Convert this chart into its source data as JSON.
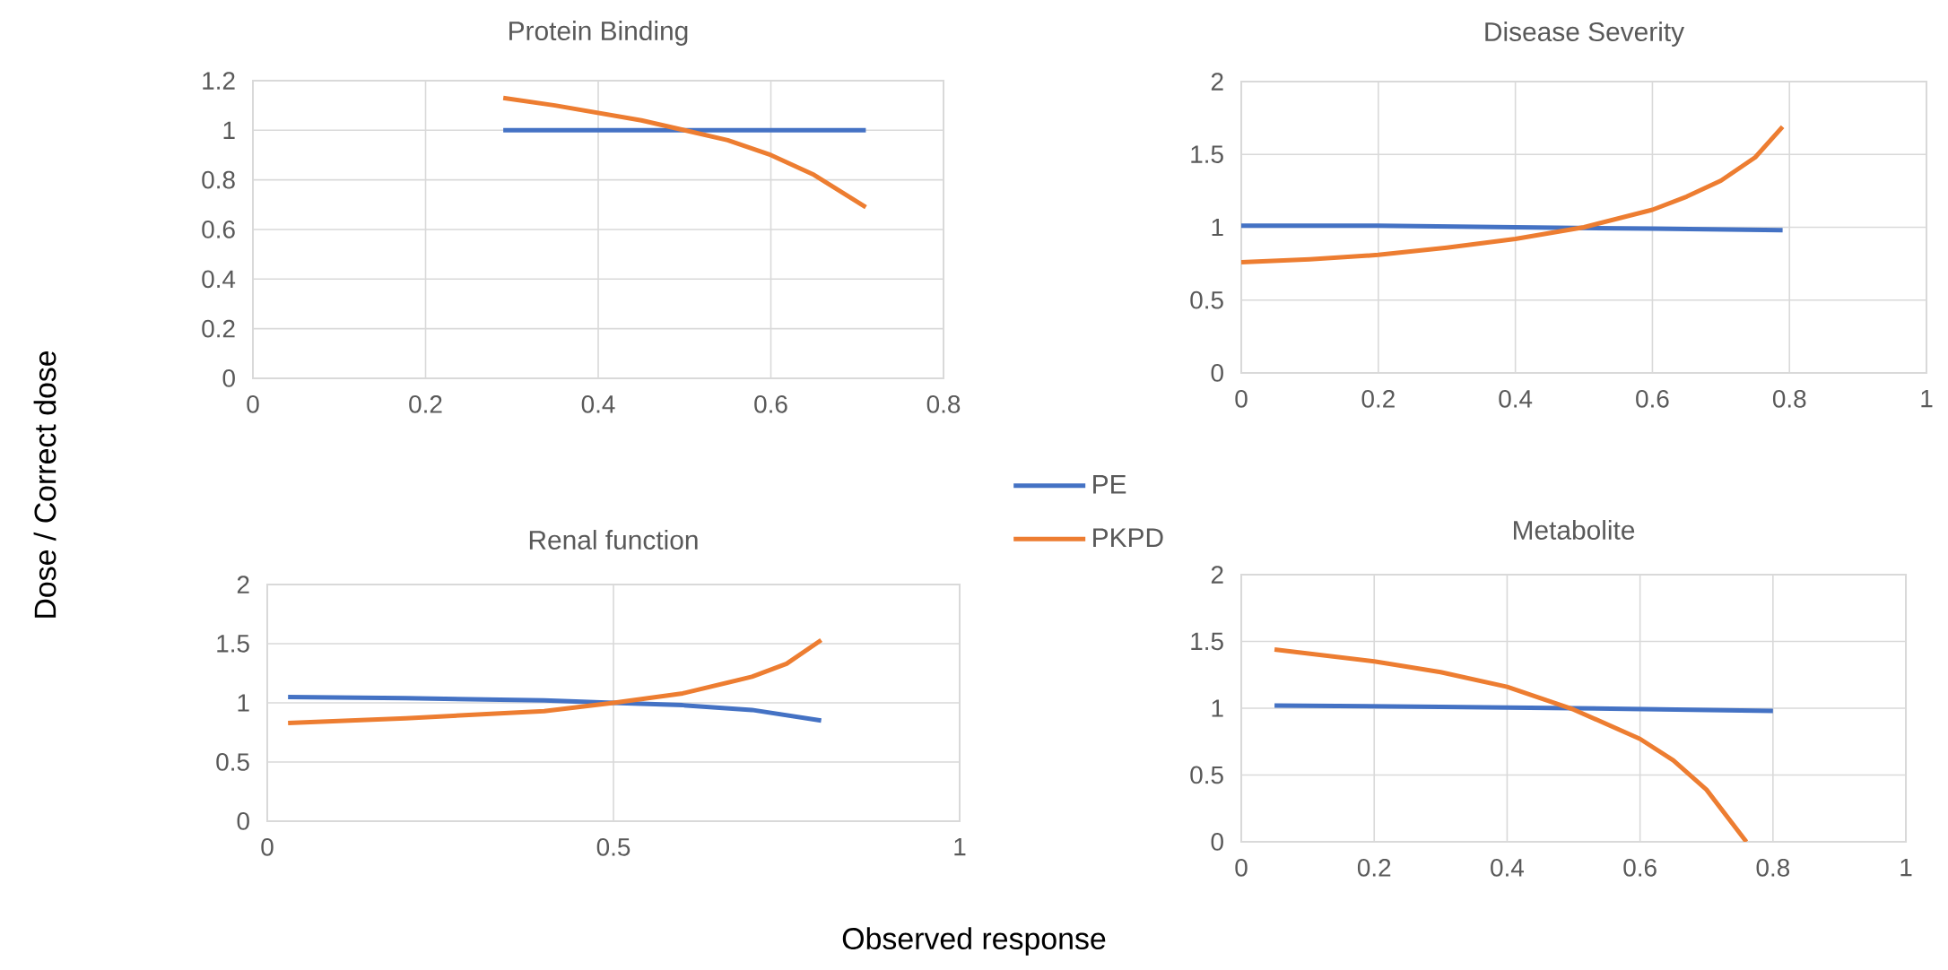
{
  "chart_data": [
    {
      "type": "line",
      "title": "Protein Binding",
      "ylabel": "Dose / Correct dose",
      "xlim": [
        0,
        0.8
      ],
      "xticks": [
        0,
        0.2,
        0.4,
        0.6,
        0.8
      ],
      "ylim": [
        0,
        1.2
      ],
      "yticks": [
        0,
        0.2,
        0.4,
        0.6,
        0.8,
        1,
        1.2
      ],
      "grid": true,
      "legend": "right",
      "marker": "none",
      "series": [
        {
          "name": "PE",
          "color": "#4472c4",
          "x": [
            0.29,
            0.4,
            0.5,
            0.6,
            0.71
          ],
          "values": [
            1,
            1,
            1,
            1,
            1
          ]
        },
        {
          "name": "PKPD",
          "color": "#ed7d31",
          "x": [
            0.29,
            0.35,
            0.4,
            0.45,
            0.5,
            0.55,
            0.6,
            0.65,
            0.71
          ],
          "values": [
            1.13,
            1.1,
            1.07,
            1.04,
            1.0,
            0.96,
            0.9,
            0.82,
            0.69
          ]
        }
      ]
    },
    {
      "type": "line",
      "title": "Disease Severity",
      "xlim": [
        0,
        1
      ],
      "xticks": [
        0,
        0.2,
        0.4,
        0.6,
        0.8,
        1
      ],
      "ylim": [
        0,
        2
      ],
      "yticks": [
        0,
        0.5,
        1,
        1.5,
        2
      ],
      "grid": true,
      "marker": "none",
      "series": [
        {
          "color": "#4472c4",
          "x": [
            0,
            0.2,
            0.4,
            0.6,
            0.79
          ],
          "values": [
            1.01,
            1.01,
            1.0,
            0.99,
            0.98
          ]
        },
        {
          "color": "#ed7d31",
          "x": [
            0,
            0.1,
            0.2,
            0.3,
            0.4,
            0.5,
            0.6,
            0.65,
            0.7,
            0.75,
            0.79
          ],
          "values": [
            0.76,
            0.78,
            0.81,
            0.86,
            0.92,
            1.0,
            1.12,
            1.21,
            1.32,
            1.48,
            1.69
          ]
        }
      ]
    },
    {
      "type": "line",
      "title": "Renal function",
      "xlabel": "Observed response",
      "xlim": [
        0,
        1
      ],
      "xticks": [
        0,
        0.5,
        1
      ],
      "ylim": [
        0,
        2
      ],
      "yticks": [
        0,
        0.5,
        1,
        1.5,
        2
      ],
      "grid": true,
      "marker": "none",
      "series": [
        {
          "color": "#4472c4",
          "x": [
            0.03,
            0.2,
            0.4,
            0.5,
            0.6,
            0.7,
            0.8
          ],
          "values": [
            1.05,
            1.04,
            1.02,
            1.0,
            0.98,
            0.94,
            0.85
          ]
        },
        {
          "color": "#ed7d31",
          "x": [
            0.03,
            0.2,
            0.4,
            0.5,
            0.6,
            0.7,
            0.75,
            0.8
          ],
          "values": [
            0.83,
            0.87,
            0.93,
            1.0,
            1.08,
            1.22,
            1.33,
            1.53
          ]
        }
      ]
    },
    {
      "type": "line",
      "title": "Metabolite",
      "xlim": [
        0,
        1
      ],
      "xticks": [
        0,
        0.2,
        0.4,
        0.6,
        0.8,
        1
      ],
      "ylim": [
        0,
        2
      ],
      "yticks": [
        0,
        0.5,
        1,
        1.5,
        2
      ],
      "grid": true,
      "marker": "none",
      "series": [
        {
          "color": "#4472c4",
          "x": [
            0.05,
            0.3,
            0.5,
            0.8
          ],
          "values": [
            1.02,
            1.01,
            1.0,
            0.98
          ]
        },
        {
          "color": "#ed7d31",
          "x": [
            0.05,
            0.2,
            0.3,
            0.4,
            0.5,
            0.6,
            0.65,
            0.7,
            0.76
          ],
          "values": [
            1.44,
            1.35,
            1.27,
            1.16,
            0.99,
            0.77,
            0.61,
            0.39,
            0
          ]
        }
      ]
    }
  ]
}
